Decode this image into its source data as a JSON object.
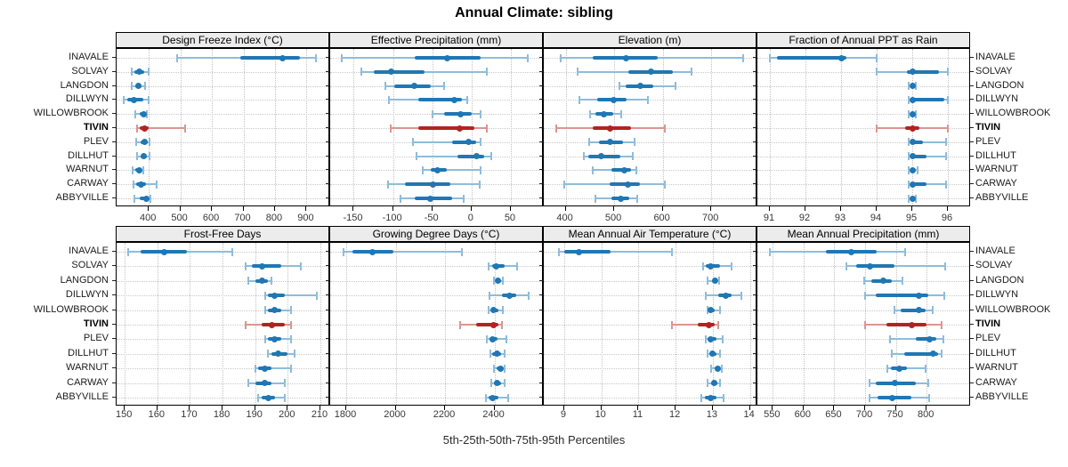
{
  "title": "Annual Climate: sibling",
  "caption": "5th-25th-50th-75th-95th Percentiles",
  "highlight_site": "TIVIN",
  "colors": {
    "series": "#1f77b4",
    "series_light": "#8fbcdb",
    "highlight": "#b22222",
    "highlight_light": "#d99790",
    "strip_bg": "#ececec",
    "grid": "#c9c9c9"
  },
  "chart_data": {
    "type": "scatter",
    "variant": "percentile-dotplot",
    "percentile_labels": [
      "5th",
      "25th",
      "50th",
      "75th",
      "95th"
    ],
    "legend_position": "none",
    "grid": "dotted",
    "categories": [
      "INAVALE",
      "SOLVAY",
      "LANGDON",
      "DILLWYN",
      "WILLOWBROOK",
      "TIVIN",
      "PLEV",
      "DILLHUT",
      "WARNUT",
      "CARWAY",
      "ABBYVILLE"
    ],
    "panels": [
      {
        "title": "Design Freeze Index (°C)",
        "xlim": [
          298,
          975
        ],
        "ticks": [
          400,
          500,
          600,
          700,
          800,
          900
        ],
        "values": [
          [
            490,
            690,
            825,
            880,
            930
          ],
          [
            345,
            355,
            371,
            386,
            400
          ],
          [
            345,
            357,
            366,
            377,
            388
          ],
          [
            320,
            331,
            354,
            383,
            400
          ],
          [
            357,
            370,
            383,
            388,
            393
          ],
          [
            364,
            371,
            388,
            400,
            514
          ],
          [
            359,
            373,
            386,
            396,
            403
          ],
          [
            362,
            374,
            383,
            394,
            402
          ],
          [
            348,
            358,
            369,
            377,
            384
          ],
          [
            352,
            360,
            376,
            392,
            426
          ],
          [
            354,
            370,
            392,
            402,
            406
          ]
        ]
      },
      {
        "title": "Effective Precipitation (mm)",
        "xlim": [
          -180,
          92
        ],
        "ticks": [
          -150,
          -100,
          -50,
          0,
          50
        ],
        "values": [
          [
            -165,
            -72,
            -31,
            11,
            72
          ],
          [
            -140,
            -124,
            -102,
            -60,
            20
          ],
          [
            -110,
            -98,
            -73,
            -52,
            -35
          ],
          [
            -105,
            -68,
            -22,
            -12,
            -5
          ],
          [
            -50,
            -35,
            -14,
            0,
            11
          ],
          [
            -103,
            -68,
            -15,
            4,
            20
          ],
          [
            -75,
            -25,
            -4,
            6,
            12
          ],
          [
            -70,
            -18,
            6,
            16,
            25
          ],
          [
            -62,
            -52,
            -43,
            -32,
            12
          ],
          [
            -106,
            -85,
            -49,
            -27,
            10
          ],
          [
            -90,
            -72,
            -53,
            -25,
            -10
          ]
        ]
      },
      {
        "title": "Elevation (m)",
        "xlim": [
          355,
          795
        ],
        "ticks": [
          400,
          500,
          600,
          700
        ],
        "values": [
          [
            390,
            455,
            525,
            590,
            765
          ],
          [
            425,
            530,
            576,
            620,
            660
          ],
          [
            510,
            523,
            553,
            580,
            627
          ],
          [
            428,
            465,
            499,
            525,
            570
          ],
          [
            451,
            462,
            479,
            498,
            515
          ],
          [
            380,
            456,
            491,
            535,
            604
          ],
          [
            449,
            468,
            492,
            519,
            542
          ],
          [
            438,
            447,
            473,
            513,
            538
          ],
          [
            456,
            495,
            521,
            535,
            545
          ],
          [
            397,
            491,
            528,
            553,
            604
          ],
          [
            462,
            495,
            513,
            531,
            548
          ]
        ]
      },
      {
        "title": "Fraction of Annual PPT as Rain",
        "xlim": [
          90.65,
          96.65
        ],
        "ticks": [
          91,
          92,
          93,
          94,
          95,
          96
        ],
        "values": [
          [
            91,
            91.2,
            93,
            93.15,
            94
          ],
          [
            94,
            94.85,
            95,
            95.75,
            96
          ],
          [
            94.9,
            94.96,
            95,
            95.05,
            95.1
          ],
          [
            94.9,
            95,
            95,
            95.9,
            96
          ],
          [
            94.9,
            94.96,
            95,
            95.05,
            95.1
          ],
          [
            94,
            94.8,
            95,
            95.2,
            96
          ],
          [
            94.9,
            95,
            95,
            95.3,
            95.95
          ],
          [
            94.9,
            95,
            95,
            95.4,
            95.95
          ],
          [
            94.9,
            94.96,
            95,
            95.06,
            95.15
          ],
          [
            94.9,
            95,
            95,
            95.4,
            95.95
          ],
          [
            94.9,
            94.96,
            95,
            95.05,
            95.1
          ]
        ]
      },
      {
        "title": "Frost-Free Days",
        "xlim": [
          147.5,
          213
        ],
        "ticks": [
          150,
          160,
          170,
          180,
          190,
          200,
          210
        ],
        "values": [
          [
            151,
            155,
            162,
            169,
            183
          ],
          [
            187,
            189,
            192,
            198,
            204
          ],
          [
            188,
            190,
            192,
            194,
            195
          ],
          [
            193,
            194,
            196,
            199,
            209
          ],
          [
            193,
            194,
            196,
            198,
            201
          ],
          [
            187,
            192,
            195,
            199,
            201
          ],
          [
            193,
            194,
            196,
            198,
            201
          ],
          [
            194,
            195,
            197,
            200,
            202
          ],
          [
            190,
            191,
            193,
            195,
            201
          ],
          [
            188,
            190,
            193,
            195,
            199
          ],
          [
            191,
            192,
            194,
            196,
            199
          ]
        ]
      },
      {
        "title": "Growing Degree Days (°C)",
        "xlim": [
          1735,
          2600
        ],
        "ticks": [
          1800,
          2000,
          2200,
          2400
        ],
        "values": [
          [
            1788,
            1826,
            1907,
            1990,
            2270
          ],
          [
            2376,
            2390,
            2406,
            2442,
            2492
          ],
          [
            2397,
            2406,
            2416,
            2427,
            2436
          ],
          [
            2379,
            2430,
            2463,
            2488,
            2540
          ],
          [
            2378,
            2386,
            2395,
            2418,
            2436
          ],
          [
            2261,
            2325,
            2397,
            2417,
            2430
          ],
          [
            2370,
            2379,
            2391,
            2412,
            2448
          ],
          [
            2382,
            2391,
            2412,
            2428,
            2442
          ],
          [
            2397,
            2410,
            2424,
            2435,
            2442
          ],
          [
            2388,
            2398,
            2412,
            2428,
            2440
          ],
          [
            2367,
            2376,
            2394,
            2416,
            2457
          ]
        ]
      },
      {
        "title": "Mean Annual Air Temperature (°C)",
        "xlim": [
          8.45,
          14.2
        ],
        "ticks": [
          9,
          10,
          11,
          12,
          13,
          14
        ],
        "values": [
          [
            8.85,
            9.0,
            9.4,
            10.25,
            11.9
          ],
          [
            12.75,
            12.8,
            12.95,
            13.2,
            13.5
          ],
          [
            12.87,
            12.97,
            13.07,
            13.12,
            13.17
          ],
          [
            12.82,
            13.15,
            13.35,
            13.5,
            13.78
          ],
          [
            12.85,
            12.9,
            12.95,
            13.05,
            13.2
          ],
          [
            11.9,
            12.6,
            12.9,
            13.05,
            13.15
          ],
          [
            12.82,
            12.87,
            12.95,
            13.1,
            13.27
          ],
          [
            12.85,
            12.93,
            13.0,
            13.1,
            13.2
          ],
          [
            12.95,
            13.05,
            13.13,
            13.2,
            13.25
          ],
          [
            12.85,
            12.95,
            13.03,
            13.12,
            13.2
          ],
          [
            12.7,
            12.78,
            12.94,
            13.1,
            13.3
          ]
        ]
      },
      {
        "title": "Mean Annual Precipitation (mm)",
        "xlim": [
          525,
          872
        ],
        "ticks": [
          550,
          600,
          650,
          700,
          750,
          800
        ],
        "values": [
          [
            545,
            636,
            678,
            719,
            765
          ],
          [
            670,
            685,
            708,
            748,
            830
          ],
          [
            698,
            710,
            730,
            744,
            760
          ],
          [
            700,
            718,
            788,
            803,
            828
          ],
          [
            748,
            758,
            787,
            798,
            810
          ],
          [
            700,
            735,
            776,
            800,
            824
          ],
          [
            740,
            782,
            805,
            815,
            827
          ],
          [
            744,
            764,
            810,
            819,
            825
          ],
          [
            736,
            742,
            755,
            768,
            798
          ],
          [
            707,
            718,
            748,
            782,
            802
          ],
          [
            707,
            720,
            744,
            775,
            804
          ]
        ]
      }
    ]
  }
}
